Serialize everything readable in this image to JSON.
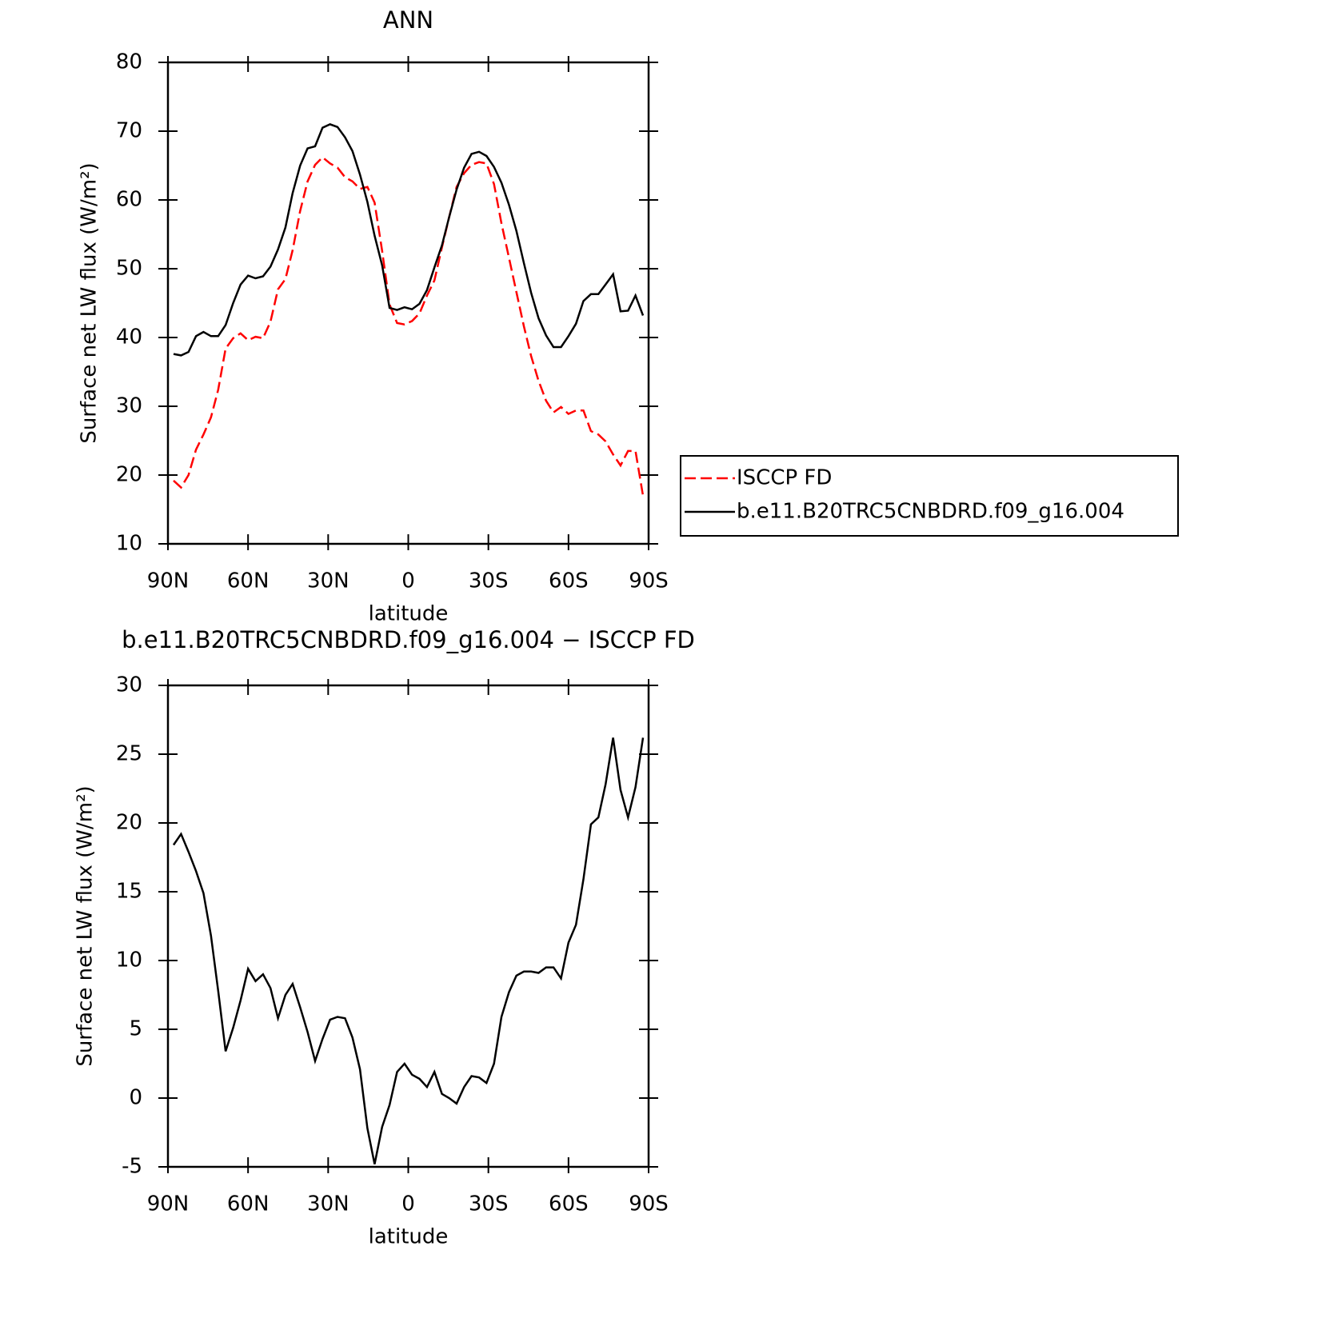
{
  "chart_data": [
    {
      "type": "line",
      "title": "ANN",
      "xlabel": "latitude",
      "ylabel": "Surface net LW flux (W/m²)",
      "x": [
        87.9,
        85.1,
        82.3,
        79.5,
        76.7,
        73.9,
        71.2,
        68.4,
        65.6,
        62.8,
        60.0,
        57.2,
        54.4,
        51.6,
        48.8,
        46.0,
        43.3,
        40.5,
        37.7,
        34.9,
        32.1,
        29.3,
        26.5,
        23.7,
        20.9,
        18.1,
        15.3,
        12.6,
        9.8,
        7.0,
        4.2,
        1.4,
        -1.4,
        -4.2,
        -7.0,
        -9.8,
        -12.6,
        -15.3,
        -18.1,
        -20.9,
        -23.7,
        -26.5,
        -29.3,
        -32.1,
        -34.9,
        -37.7,
        -40.5,
        -43.3,
        -46.0,
        -48.8,
        -51.6,
        -54.4,
        -57.2,
        -60.0,
        -62.8,
        -65.6,
        -68.4,
        -71.2,
        -73.9,
        -76.7,
        -79.5,
        -82.3,
        -85.1,
        -87.9
      ],
      "series": [
        {
          "name": "ISCCP FD",
          "color": "#ff0000",
          "linestyle": "dashed",
          "values": [
            19.2,
            18.2,
            20,
            23.7,
            25.9,
            28.4,
            32.4,
            38.4,
            39.9,
            40.6,
            39.6,
            40.1,
            39.9,
            42.3,
            47,
            48.5,
            52.7,
            58.4,
            62.7,
            65.1,
            66.2,
            65.3,
            64.7,
            63.3,
            62.7,
            61.6,
            61.9,
            59.6,
            52.6,
            44.8,
            42.1,
            41.9,
            42.4,
            43.5,
            46.1,
            48.3,
            53.1,
            57.5,
            61.9,
            63.9,
            65.1,
            65.5,
            65.3,
            62.3,
            56.6,
            51.6,
            46.6,
            41.6,
            37.3,
            33.7,
            30.8,
            29.1,
            29.9,
            28.9,
            29.4,
            29.4,
            26.4,
            25.9,
            24.9,
            23,
            21.4,
            23.5,
            23.5,
            17
          ]
        },
        {
          "name": "b.e11.B20TRC5CNBDRD.f09_g16.004",
          "color": "#000000",
          "linestyle": "solid",
          "values": [
            37.6,
            37.4,
            37.9,
            40.2,
            40.8,
            40.2,
            40.2,
            41.8,
            45,
            47.7,
            49,
            48.6,
            48.9,
            50.3,
            52.8,
            56,
            61,
            65,
            67.5,
            67.8,
            70.5,
            71,
            70.6,
            69.1,
            67.1,
            63.7,
            59.7,
            54.8,
            50.5,
            44.3,
            44,
            44.4,
            44.1,
            44.9,
            46.9,
            50.2,
            53.4,
            57.5,
            61.5,
            64.7,
            66.7,
            67,
            66.4,
            64.8,
            62.5,
            59.3,
            55.5,
            50.8,
            46.5,
            42.8,
            40.3,
            38.6,
            38.6,
            40.2,
            42,
            45.3,
            46.3,
            46.3,
            47.7,
            49.2,
            43.8,
            43.9,
            46.1,
            43.2
          ]
        }
      ],
      "xlim": [
        90,
        -90
      ],
      "xticks": [
        {
          "value": 90,
          "label": "90N"
        },
        {
          "value": 60,
          "label": "60N"
        },
        {
          "value": 30,
          "label": "30N"
        },
        0,
        {
          "value": -30,
          "label": "30S"
        },
        {
          "value": -60,
          "label": "60S"
        },
        {
          "value": -90,
          "label": "90S"
        }
      ],
      "ylim": [
        10,
        80
      ],
      "yticks": [
        10,
        20,
        30,
        40,
        50,
        60,
        70,
        80
      ],
      "grid": false,
      "legend": "right"
    },
    {
      "type": "line",
      "title": "b.e11.B20TRC5CNBDRD.f09_g16.004 − ISCCP FD",
      "xlabel": "latitude",
      "ylabel": "Surface net LW flux (W/m²)",
      "x": [
        87.9,
        85.1,
        82.3,
        79.5,
        76.7,
        73.9,
        71.2,
        68.4,
        65.6,
        62.8,
        60.0,
        57.2,
        54.4,
        51.6,
        48.8,
        46.0,
        43.3,
        40.5,
        37.7,
        34.9,
        32.1,
        29.3,
        26.5,
        23.7,
        20.9,
        18.1,
        15.3,
        12.6,
        9.8,
        7.0,
        4.2,
        1.4,
        -1.4,
        -4.2,
        -7.0,
        -9.8,
        -12.6,
        -15.3,
        -18.1,
        -20.9,
        -23.7,
        -26.5,
        -29.3,
        -32.1,
        -34.9,
        -37.7,
        -40.5,
        -43.3,
        -46.0,
        -48.8,
        -51.6,
        -54.4,
        -57.2,
        -60.0,
        -62.8,
        -65.6,
        -68.4,
        -71.2,
        -73.9,
        -76.7,
        -79.5,
        -82.3,
        -85.1,
        -87.9
      ],
      "color": "#000000",
      "values": [
        18.4,
        19.2,
        17.9,
        16.5,
        14.9,
        11.8,
        7.8,
        3.4,
        5.1,
        7.1,
        9.4,
        8.5,
        9.0,
        8.0,
        5.8,
        7.5,
        8.3,
        6.6,
        4.8,
        2.7,
        4.3,
        5.7,
        5.9,
        5.8,
        4.4,
        2.1,
        -2.2,
        -4.8,
        -2.1,
        -0.5,
        1.9,
        2.5,
        1.7,
        1.4,
        0.8,
        1.9,
        0.3,
        0,
        -0.4,
        0.8,
        1.6,
        1.5,
        1.1,
        2.5,
        5.9,
        7.7,
        8.9,
        9.2,
        9.2,
        9.1,
        9.5,
        9.5,
        8.7,
        11.3,
        12.6,
        15.9,
        19.9,
        20.4,
        22.8,
        26.2,
        22.4,
        20.4,
        22.6,
        26.2
      ],
      "xlim": [
        90,
        -90
      ],
      "xticks": [
        {
          "value": 90,
          "label": "90N"
        },
        {
          "value": 60,
          "label": "60N"
        },
        {
          "value": 30,
          "label": "30N"
        },
        0,
        {
          "value": -30,
          "label": "30S"
        },
        {
          "value": -60,
          "label": "60S"
        },
        {
          "value": -90,
          "label": "90S"
        }
      ],
      "ylim": [
        -5,
        30
      ],
      "yticks": [
        -5,
        0,
        5,
        10,
        15,
        20,
        25,
        30
      ],
      "grid": false
    }
  ]
}
